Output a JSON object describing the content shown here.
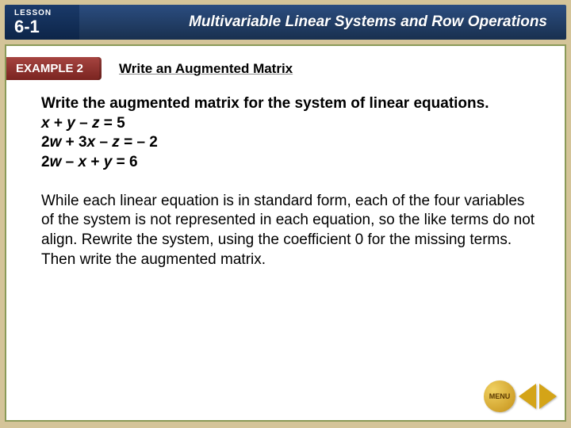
{
  "header": {
    "lesson_label": "LESSON",
    "lesson_number": "6-1",
    "chapter_title": "Multivariable Linear Systems and Row Operations"
  },
  "example": {
    "tab": "EXAMPLE 2",
    "title": "Write an Augmented Matrix"
  },
  "problem": {
    "intro": "Write the augmented matrix for the system of linear equations.",
    "eq1_a": "x",
    "eq1_b": " + ",
    "eq1_c": "y",
    "eq1_d": " – ",
    "eq1_e": "z",
    "eq1_f": " = 5",
    "eq2_a": "2",
    "eq2_b": "w",
    "eq2_c": " + 3",
    "eq2_d": "x",
    "eq2_e": " – ",
    "eq2_f": "z",
    "eq2_g": " = – 2",
    "eq3_a": "2",
    "eq3_b": "w",
    "eq3_c": " – ",
    "eq3_d": "x",
    "eq3_e": " + ",
    "eq3_f": "y",
    "eq3_g": " = 6"
  },
  "explanation": "While each linear equation is in standard form, each of the four variables of the system is not represented in each equation, so the like terms do not align. Rewrite the system, using the coefficient 0 for the missing terms. Then write the augmented matrix.",
  "nav": {
    "menu": "MENU"
  },
  "colors": {
    "frame_bg": "#d4c499",
    "content_border": "#8a9a58",
    "header_dark": "#19304f",
    "example_red": "#7a2420",
    "gold": "#d4a418"
  }
}
